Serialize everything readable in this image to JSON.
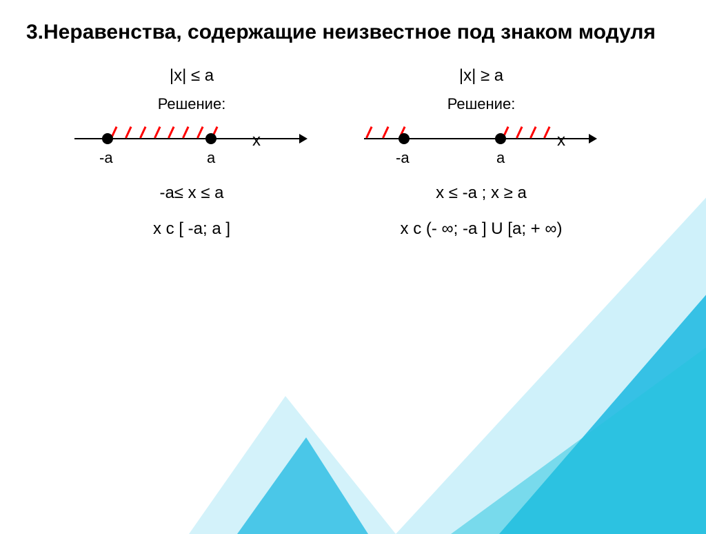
{
  "title": "3.Неравенства, содержащие неизвестное под знаком модуля",
  "left": {
    "inequality": "|x| ≤ a",
    "solveLabel": "Решение:",
    "pointLeftLabel": "-a",
    "pointRightLabel": "a",
    "axisLabel": "x",
    "range": "-a≤ x ≤ a",
    "interval": "x ϲ [ -a; a ]",
    "axis": {
      "dotLeftPx": 50,
      "dotRightPx": 200,
      "xLabelPx": 268,
      "hatch": {
        "type": "between",
        "startPx": 62,
        "endPx": 208,
        "count": 8,
        "color": "#ff0000"
      }
    }
  },
  "right": {
    "inequality": "|x| ≥ a",
    "solveLabel": "Решение:",
    "pointLeftLabel": "-a",
    "pointRightLabel": "a",
    "axisLabel": "x",
    "range": "x ≤ -a ; x ≥ a",
    "interval": "x ϲ (- ∞; -a ] U [a; + ∞)",
    "axis": {
      "dotLeftPx": 60,
      "dotRightPx": 200,
      "xLabelPx": 290,
      "hatchLeft": {
        "startPx": 12,
        "endPx": 60,
        "count": 3,
        "color": "#ff0000"
      },
      "hatchRight": {
        "startPx": 210,
        "endPx": 270,
        "count": 4,
        "color": "#ff0000"
      }
    }
  },
  "colors": {
    "hatch": "#ff0000",
    "text": "#000000",
    "bgDecorPrimary": "#0fb5e0",
    "bgDecorLight": "#a8e6f5",
    "bgDecorAccent": "#22c4de",
    "background": "#ffffff"
  }
}
